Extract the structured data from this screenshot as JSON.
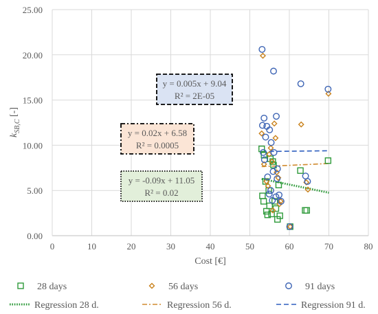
{
  "chart_data": {
    "type": "scatter",
    "xlabel": "Cost [€]",
    "ylabel_main": "k",
    "ylabel_sub": "SB,C",
    "ylabel_unit": " [-]",
    "xlim": [
      0,
      80
    ],
    "ylim": [
      0,
      25
    ],
    "x_ticks": [
      0,
      10,
      20,
      30,
      40,
      50,
      60,
      70,
      80
    ],
    "y_ticks": [
      0,
      5,
      10,
      15,
      20,
      25
    ],
    "x_tick_labels": [
      "0",
      "10",
      "20",
      "30",
      "40",
      "50",
      "60",
      "70",
      "80"
    ],
    "y_tick_labels": [
      "0.00",
      "5.00",
      "10.00",
      "15.00",
      "20.00",
      "25.00"
    ],
    "grid": true,
    "legend_position": "bottom",
    "series": [
      {
        "name": "28 days",
        "marker": "square",
        "color": "#2e9a3a",
        "points": [
          [
            53.0,
            9.6
          ],
          [
            53.2,
            4.4
          ],
          [
            53.5,
            3.8
          ],
          [
            53.6,
            8.9
          ],
          [
            54.0,
            6.0
          ],
          [
            54.2,
            2.7
          ],
          [
            54.5,
            2.3
          ],
          [
            54.8,
            5.0
          ],
          [
            55.0,
            3.3
          ],
          [
            55.2,
            8.5
          ],
          [
            55.5,
            2.4
          ],
          [
            55.8,
            8.2
          ],
          [
            56.0,
            7.8
          ],
          [
            56.3,
            3.8
          ],
          [
            56.6,
            3.0
          ],
          [
            57.0,
            1.8
          ],
          [
            57.3,
            5.6
          ],
          [
            57.6,
            2.2
          ],
          [
            60.2,
            1.0
          ],
          [
            62.8,
            7.2
          ],
          [
            64.0,
            2.8
          ],
          [
            64.4,
            2.8
          ],
          [
            69.8,
            8.3
          ]
        ]
      },
      {
        "name": "56 days",
        "marker": "diamond",
        "color": "#c9821c",
        "points": [
          [
            53.3,
            19.9
          ],
          [
            53.0,
            11.3
          ],
          [
            53.6,
            7.9
          ],
          [
            54.2,
            6.0
          ],
          [
            54.6,
            5.5
          ],
          [
            54.9,
            9.0
          ],
          [
            55.3,
            9.7
          ],
          [
            55.6,
            8.2
          ],
          [
            55.8,
            2.8
          ],
          [
            56.2,
            12.4
          ],
          [
            56.5,
            10.8
          ],
          [
            56.8,
            7.0
          ],
          [
            57.2,
            6.4
          ],
          [
            57.5,
            3.5
          ],
          [
            57.8,
            3.8
          ],
          [
            60.2,
            1.0
          ],
          [
            63.0,
            12.3
          ],
          [
            64.3,
            5.9
          ],
          [
            64.7,
            5.1
          ],
          [
            69.9,
            15.7
          ]
        ]
      },
      {
        "name": "91 days",
        "marker": "circle",
        "color": "#3d64b4",
        "points": [
          [
            53.1,
            20.6
          ],
          [
            56.0,
            18.2
          ],
          [
            53.6,
            13.0
          ],
          [
            56.7,
            13.2
          ],
          [
            53.2,
            12.2
          ],
          [
            54.3,
            12.1
          ],
          [
            55.0,
            11.7
          ],
          [
            54.0,
            10.9
          ],
          [
            53.4,
            9.2
          ],
          [
            55.4,
            10.3
          ],
          [
            56.1,
            9.2
          ],
          [
            53.7,
            8.4
          ],
          [
            57.0,
            7.4
          ],
          [
            54.5,
            6.5
          ],
          [
            55.9,
            7.1
          ],
          [
            56.9,
            6.3
          ],
          [
            55.3,
            5.0
          ],
          [
            54.9,
            4.6
          ],
          [
            56.6,
            4.3
          ],
          [
            57.4,
            4.5
          ],
          [
            55.7,
            3.9
          ],
          [
            57.9,
            3.8
          ],
          [
            60.1,
            1.0
          ],
          [
            62.9,
            16.8
          ],
          [
            64.1,
            6.6
          ],
          [
            64.6,
            6.0
          ],
          [
            69.8,
            16.2
          ]
        ]
      }
    ],
    "regressions": [
      {
        "name": "Regression 28 d.",
        "color": "#2e9a3a",
        "style": "dotted",
        "x_range": [
          53,
          70
        ],
        "slope": -0.09,
        "intercept": 11.05
      },
      {
        "name": "Regression 56 d.",
        "color": "#d08a2e",
        "style": "dashdot",
        "x_range": [
          53,
          70
        ],
        "slope": 0.02,
        "intercept": 6.58
      },
      {
        "name": "Regression 91 d.",
        "color": "#2f5fbf",
        "style": "dashed",
        "x_range": [
          53,
          70
        ],
        "slope": 0.005,
        "intercept": 9.04
      }
    ],
    "annotations": [
      {
        "name": "eq-91",
        "line1": "y = 0.005x + 9.04",
        "line2": "R² = 2E-05",
        "fill": "#dae3f3",
        "border": "dashed"
      },
      {
        "name": "eq-56",
        "line1": "y = 0.02x + 6.58",
        "line2": "R² = 0.0005",
        "fill": "#fbe5d6",
        "border": "dashdot"
      },
      {
        "name": "eq-28",
        "line1": "y = -0.09x + 11.05",
        "line2": "R² = 0.02",
        "fill": "#e2efda",
        "border": "dotted"
      }
    ]
  }
}
